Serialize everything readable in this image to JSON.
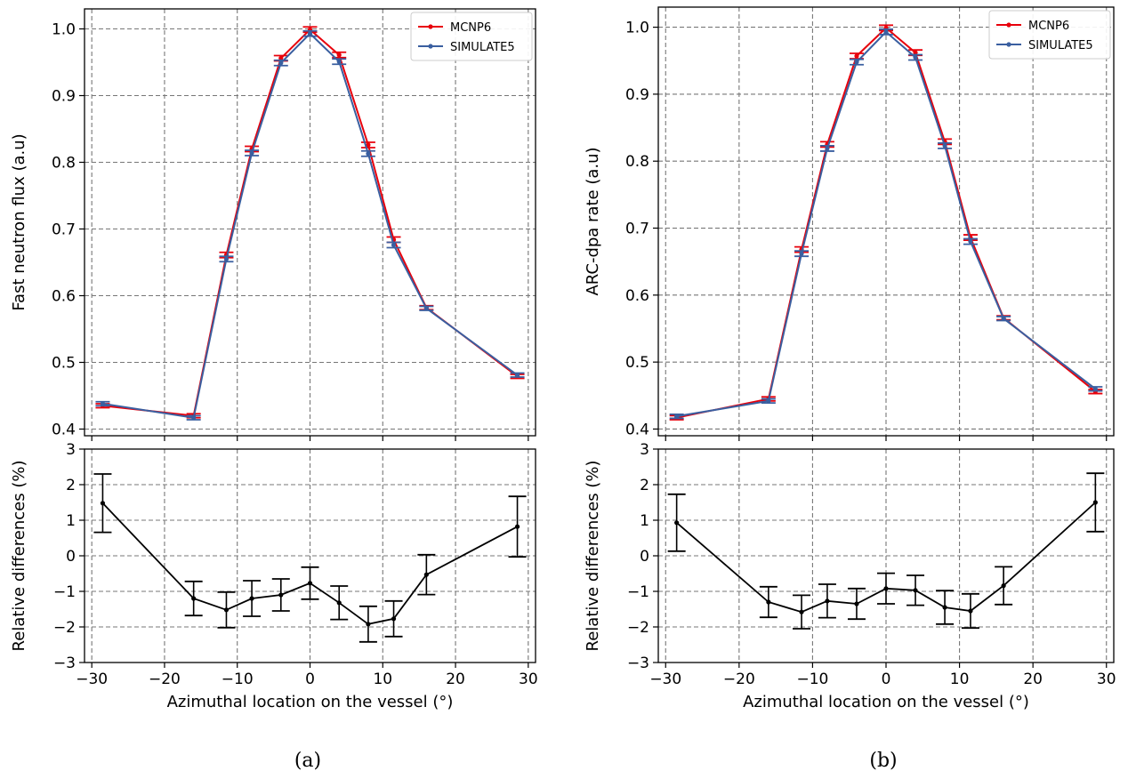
{
  "panels": [
    {
      "caption": "(a)"
    },
    {
      "caption": "(b)"
    }
  ],
  "chart_data": [
    {
      "panel": "(a)",
      "type": "line",
      "position": "top",
      "x": [
        -28.5,
        -16,
        -11.5,
        -8,
        -4,
        0,
        4,
        8,
        11.5,
        16,
        28.5
      ],
      "xlim": [
        -31,
        31
      ],
      "xticks": [
        -30,
        -20,
        -10,
        0,
        10,
        20,
        30
      ],
      "ylim": [
        0.39,
        1.03
      ],
      "yticks": [
        0.4,
        0.5,
        0.6,
        0.7,
        0.8,
        0.9,
        1.0
      ],
      "ylabel": "Fast neutron flux (a.u)",
      "xlabel": "",
      "grid": true,
      "legend": "top-right",
      "series": [
        {
          "name": "MCNP6",
          "color": "#e8000b",
          "values": [
            0.435,
            0.42,
            0.661,
            0.82,
            0.956,
            0.999,
            0.961,
            0.826,
            0.684,
            0.582,
            0.479
          ],
          "errors": [
            0.003,
            0.003,
            0.004,
            0.004,
            0.004,
            0.004,
            0.004,
            0.004,
            0.004,
            0.003,
            0.003
          ]
        },
        {
          "name": "SIMULATE5",
          "color": "#3a5fa0",
          "values": [
            0.438,
            0.417,
            0.655,
            0.814,
            0.949,
            0.993,
            0.951,
            0.813,
            0.676,
            0.581,
            0.481
          ],
          "errors": [
            0.003,
            0.003,
            0.004,
            0.004,
            0.004,
            0.004,
            0.004,
            0.004,
            0.004,
            0.003,
            0.003
          ]
        }
      ]
    },
    {
      "panel": "(a)",
      "type": "line",
      "position": "bottom",
      "x": [
        -28.5,
        -16,
        -11.5,
        -8,
        -4,
        0,
        4,
        8,
        11.5,
        16,
        28.5
      ],
      "xlim": [
        -31,
        31
      ],
      "xticks": [
        -30,
        -20,
        -10,
        0,
        10,
        20,
        30
      ],
      "ylim": [
        -3,
        3
      ],
      "yticks": [
        -3,
        -2,
        -1,
        0,
        1,
        2,
        3
      ],
      "ylabel": "Relative differences (%)",
      "xlabel": "Azimuthal location on the vessel (°)",
      "grid": true,
      "series": [
        {
          "color": "#000000",
          "values": [
            1.48,
            -1.2,
            -1.52,
            -1.2,
            -1.1,
            -0.77,
            -1.32,
            -1.92,
            -1.77,
            -0.53,
            0.82
          ],
          "errors": [
            0.82,
            0.48,
            0.5,
            0.5,
            0.45,
            0.45,
            0.47,
            0.5,
            0.5,
            0.56,
            0.85
          ]
        }
      ]
    },
    {
      "panel": "(b)",
      "type": "line",
      "position": "top",
      "x": [
        -28.5,
        -16,
        -11.5,
        -8,
        -4,
        0,
        4,
        8,
        11.5,
        16,
        28.5
      ],
      "xlim": [
        -31,
        31
      ],
      "xticks": [
        -30,
        -20,
        -10,
        0,
        10,
        20,
        30
      ],
      "ylim": [
        0.39,
        1.03
      ],
      "yticks": [
        0.4,
        0.5,
        0.6,
        0.7,
        0.8,
        0.9,
        1.0
      ],
      "ylabel": "ARC-dpa rate (a.u)",
      "xlabel": "",
      "grid": true,
      "legend": "top-right",
      "series": [
        {
          "name": "MCNP6",
          "color": "#e8000b",
          "values": [
            0.417,
            0.445,
            0.668,
            0.825,
            0.957,
            0.999,
            0.962,
            0.829,
            0.686,
            0.566,
            0.456
          ],
          "errors": [
            0.003,
            0.003,
            0.004,
            0.004,
            0.004,
            0.004,
            0.004,
            0.004,
            0.004,
            0.003,
            0.003
          ]
        },
        {
          "name": "SIMULATE5",
          "color": "#3a5fa0",
          "values": [
            0.419,
            0.442,
            0.662,
            0.819,
            0.948,
            0.993,
            0.955,
            0.823,
            0.68,
            0.565,
            0.46
          ],
          "errors": [
            0.003,
            0.003,
            0.004,
            0.004,
            0.004,
            0.004,
            0.004,
            0.004,
            0.004,
            0.003,
            0.003
          ]
        }
      ]
    },
    {
      "panel": "(b)",
      "type": "line",
      "position": "bottom",
      "x": [
        -28.5,
        -16,
        -11.5,
        -8,
        -4,
        0,
        4,
        8,
        11.5,
        16,
        28.5
      ],
      "xlim": [
        -31,
        31
      ],
      "xticks": [
        -30,
        -20,
        -10,
        0,
        10,
        20,
        30
      ],
      "ylim": [
        -3,
        3
      ],
      "yticks": [
        -3,
        -2,
        -1,
        0,
        1,
        2,
        3
      ],
      "ylabel": "Relative differences (%)",
      "xlabel": "Azimuthal location on the vessel (°)",
      "grid": true,
      "series": [
        {
          "color": "#000000",
          "values": [
            0.93,
            -1.3,
            -1.58,
            -1.27,
            -1.35,
            -0.92,
            -0.97,
            -1.45,
            -1.55,
            -0.84,
            1.5
          ],
          "errors": [
            0.8,
            0.43,
            0.47,
            0.47,
            0.43,
            0.43,
            0.42,
            0.47,
            0.48,
            0.53,
            0.82
          ]
        }
      ]
    }
  ]
}
